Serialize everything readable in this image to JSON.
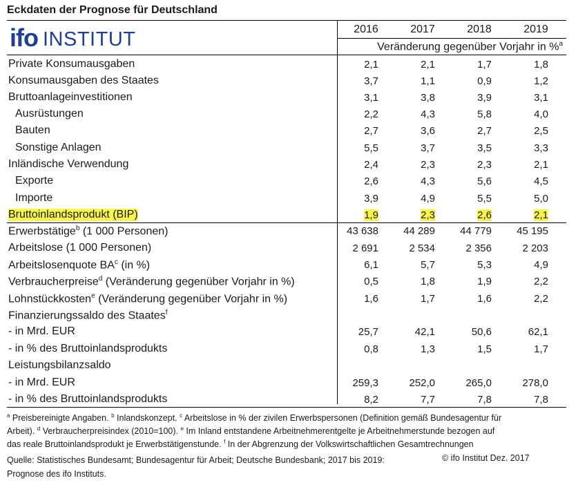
{
  "title": "Eckdaten der Prognose für Deutschland",
  "logo": {
    "ifo": "ifo",
    "institut": "INSTITUT"
  },
  "years": [
    "2016",
    "2017",
    "2018",
    "2019"
  ],
  "unit_note": "Veränderung gegenüber Vorjahr in %",
  "unit_note_sup": "a",
  "rows": [
    {
      "label": "Private Konsumausgaben",
      "values": [
        "2,1",
        "2,1",
        "1,7",
        "1,8"
      ]
    },
    {
      "label": "Konsumausgaben des Staates",
      "values": [
        "3,7",
        "1,1",
        "0,9",
        "1,2"
      ]
    },
    {
      "label": "Bruttoanlageinvestitionen",
      "values": [
        "3,1",
        "3,8",
        "3,9",
        "3,1"
      ]
    },
    {
      "label": "Ausrüstungen",
      "values": [
        "2,2",
        "4,3",
        "5,8",
        "4,0"
      ]
    },
    {
      "label": "Bauten",
      "values": [
        "2,7",
        "3,6",
        "2,7",
        "2,5"
      ]
    },
    {
      "label": "Sonstige Anlagen",
      "values": [
        "5,5",
        "3,7",
        "3,5",
        "3,3"
      ]
    },
    {
      "label": "Inländische Verwendung",
      "values": [
        "2,4",
        "2,3",
        "2,3",
        "2,1"
      ]
    },
    {
      "label": "Exporte",
      "values": [
        "2,6",
        "4,3",
        "5,6",
        "4,5"
      ]
    },
    {
      "label": "Importe",
      "values": [
        "3,9",
        "4,9",
        "5,5",
        "5,0"
      ]
    },
    {
      "label": "Bruttoinlandsprodukt (BIP)",
      "values": [
        "1,9",
        "2,3",
        "2,6",
        "2,1"
      ]
    },
    {
      "label": "Erwerbstätige",
      "sup": "b",
      "label_rest": " (1 000 Personen)",
      "values": [
        "43 638",
        "44 289",
        "44 779",
        "45 195"
      ]
    },
    {
      "label": "Arbeitslose (1 000 Personen)",
      "values": [
        "2 691",
        "2 534",
        "2 356",
        "2 203"
      ]
    },
    {
      "label": "Arbeitslosenquote BA",
      "sup": "c",
      "label_rest": " (in %)",
      "values": [
        "6,1",
        "5,7",
        "5,3",
        "4,9"
      ]
    },
    {
      "label": "Verbraucherpreise",
      "sup": "d",
      "label_rest": " (Veränderung gegenüber Vorjahr in %)",
      "values": [
        "0,5",
        "1,8",
        "1,9",
        "2,2"
      ]
    },
    {
      "label": "Lohnstückkosten",
      "sup": "e",
      "label_rest": " (Veränderung gegenüber Vorjahr in %)",
      "values": [
        "1,6",
        "1,7",
        "1,6",
        "2,2"
      ]
    },
    {
      "label": "Finanzierungssaldo des Staates",
      "sup": "f",
      "label_rest": ""
    },
    {
      "label": " - in Mrd. EUR",
      "values": [
        "25,7",
        "42,1",
        "50,6",
        "62,1"
      ]
    },
    {
      "label": " - in % des Bruttoinlandsprodukts",
      "values": [
        "0,8",
        "1,3",
        "1,5",
        "1,7"
      ]
    },
    {
      "label": "Leistungsbilanzsaldo"
    },
    {
      "label": " - in Mrd. EUR",
      "values": [
        "259,3",
        "252,0",
        "265,0",
        "278,0"
      ]
    },
    {
      "label": " - in % des Bruttoinlandsprodukts",
      "values": [
        "8,2",
        "7,7",
        "7,8",
        "7,8"
      ]
    }
  ],
  "footnotes": {
    "line1": [
      {
        "sup": "a",
        "text": " Preisbereinigte Angaben. "
      },
      {
        "sup": "b",
        "text": " Inlandskonzept. "
      },
      {
        "sup": "c",
        "text": " Arbeitslose in % der zivilen Erwerbspersonen (Definition gemäß Bundesagentur für"
      }
    ],
    "line2": [
      {
        "text": "Arbeit). "
      },
      {
        "sup": "d",
        "text": " Verbraucherpreisindex (2010=100). "
      },
      {
        "sup": "e",
        "text": " Im Inland entstandene Arbeitnehmerentgelte je Arbeitnehmerstunde bezogen auf"
      }
    ],
    "line3": [
      {
        "text": "das reale Bruttoinlandsprodukt je Erwerbstätigenstunde. "
      },
      {
        "sup": "f",
        "text": " In der Abgrenzung der Volkswirtschaftlichen Gesamtrechnungen"
      }
    ]
  },
  "source_line1": "Quelle: Statistisches Bundesamt; Bundesagentur für Arbeit; Deutsche Bundesbank; 2017 bis 2019:",
  "source_line2": "Prognose des ifo Instituts.",
  "copyright": "© ifo Institut Dez. 2017"
}
